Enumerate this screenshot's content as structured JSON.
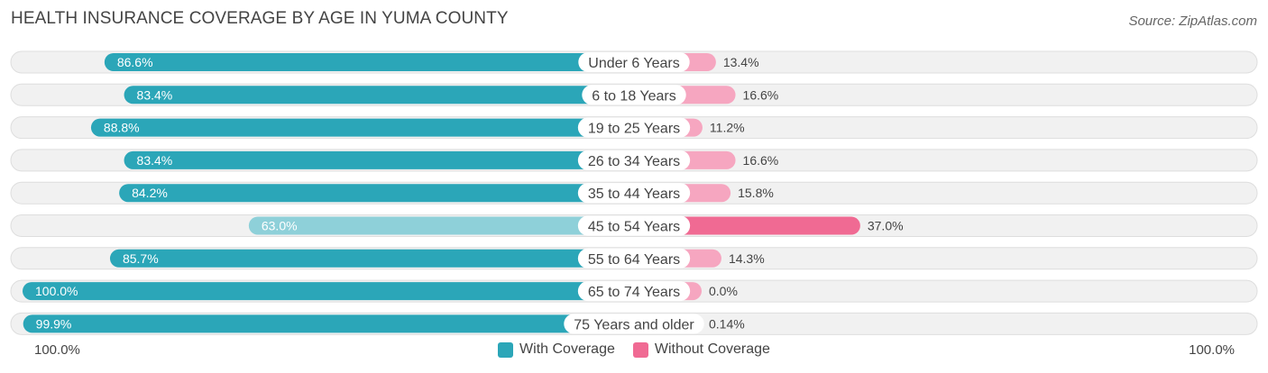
{
  "chart_data": {
    "type": "bar",
    "title": "HEALTH INSURANCE COVERAGE BY AGE IN YUMA COUNTY",
    "source": "Source: ZipAtlas.com",
    "categories": [
      "Under 6 Years",
      "6 to 18 Years",
      "19 to 25 Years",
      "26 to 34 Years",
      "35 to 44 Years",
      "45 to 54 Years",
      "55 to 64 Years",
      "65 to 74 Years",
      "75 Years and older"
    ],
    "series": [
      {
        "name": "With Coverage",
        "values": [
          86.6,
          83.4,
          88.8,
          83.4,
          84.2,
          63.0,
          85.7,
          100.0,
          99.9
        ],
        "labels": [
          "86.6%",
          "83.4%",
          "88.8%",
          "83.4%",
          "84.2%",
          "63.0%",
          "85.7%",
          "100.0%",
          "99.9%"
        ]
      },
      {
        "name": "Without Coverage",
        "values": [
          13.4,
          16.6,
          11.2,
          16.6,
          15.8,
          37.0,
          14.3,
          0.0,
          0.14
        ],
        "labels": [
          "13.4%",
          "16.6%",
          "11.2%",
          "16.6%",
          "15.8%",
          "37.0%",
          "14.3%",
          "0.0%",
          "0.14%"
        ]
      }
    ],
    "axis_left_label": "100.0%",
    "axis_right_label": "100.0%",
    "xlim": [
      -100,
      100
    ],
    "legend_position": "bottom-center"
  },
  "colors": {
    "with_strong": "#2ba6b8",
    "with_light": "#8ed0d9",
    "without_strong": "#f06a93",
    "without_light": "#f6a6c0",
    "row_bg": "#f1f1f1",
    "row_border": "#dedede"
  }
}
